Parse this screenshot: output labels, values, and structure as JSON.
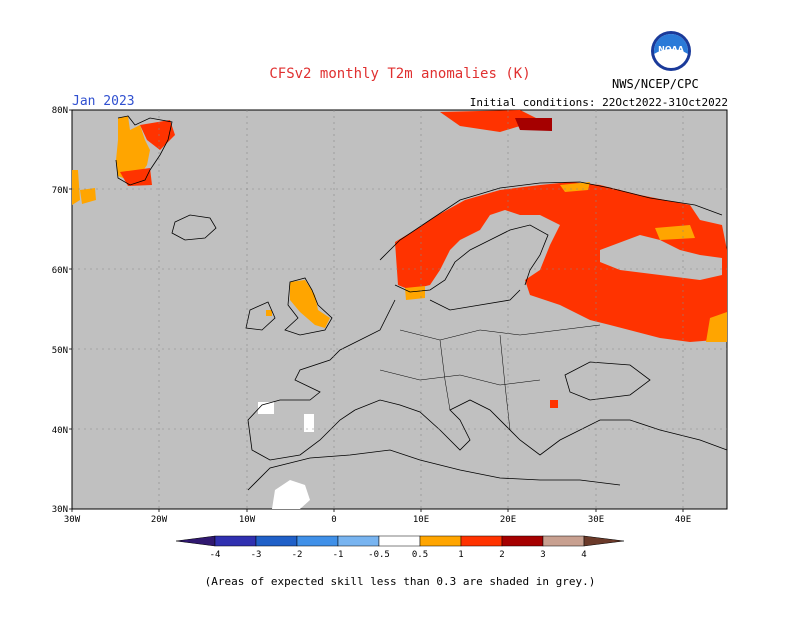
{
  "header": {
    "title": "CFSv2 monthly T2m anomalies (K)",
    "month": "Jan 2023",
    "initial_conditions": "Initial conditions: 22Oct2022-31Oct2022",
    "agency": "NWS/NCEP/CPC",
    "logo_text": "NOAA"
  },
  "colors": {
    "title": "#e03030",
    "month": "#3050d0",
    "ocean_land_grey": "#c0c0c0",
    "white_band": "#ffffff",
    "c_0_5_1": "#ffa500",
    "c_1_2": "#ff3300",
    "c_2_3": "#a50000",
    "c_3_4": "#c8a090",
    "c_4p": "#6b3a2a",
    "c_m0_5_m1": "#78b4f0",
    "c_m1_m2": "#4090e8",
    "c_m2_m3": "#2060c8",
    "c_m3_m4": "#3030b0",
    "c_m4": "#301870"
  },
  "map": {
    "lat_labels": [
      "80N",
      "70N",
      "60N",
      "50N",
      "40N",
      "30N"
    ],
    "lon_labels": [
      "30W",
      "20W",
      "10W",
      "0",
      "10E",
      "20E",
      "30E",
      "40E"
    ]
  },
  "colorbar": {
    "labels": [
      "-4",
      "-3",
      "-2",
      "-1",
      "-0.5",
      "0.5",
      "1",
      "2",
      "3",
      "4"
    ]
  },
  "footer": {
    "note": "(Areas of expected skill less than 0.3 are shaded in grey.)"
  }
}
